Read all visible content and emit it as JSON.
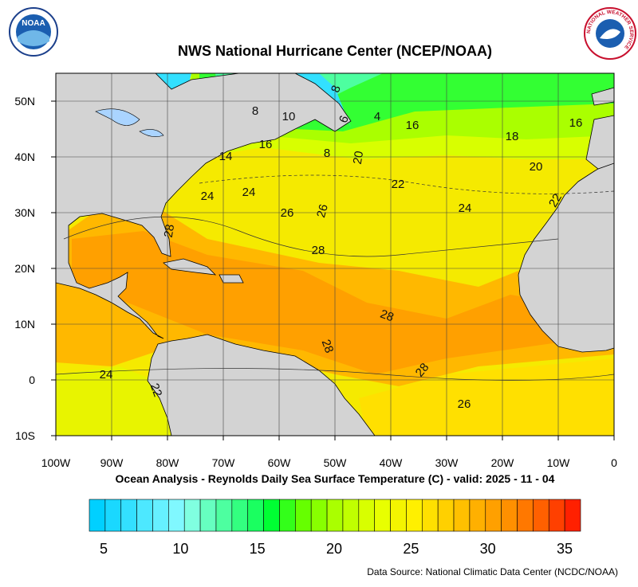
{
  "header": {
    "title": "NWS National Hurricane Center (NCEP/NOAA)",
    "noaa_logo": "NOAA",
    "nws_logo": "NATIONAL WEATHER SERVICE"
  },
  "map": {
    "lon_labels": [
      "100W",
      "90W",
      "80W",
      "70W",
      "60W",
      "50W",
      "40W",
      "30W",
      "20W",
      "10W",
      "0"
    ],
    "lat_labels": [
      "50N",
      "40N",
      "30N",
      "20N",
      "10N",
      "0",
      "10S"
    ],
    "contour_labels": [
      "8",
      "8",
      "10",
      "6",
      "4",
      "16",
      "16",
      "16",
      "18",
      "8",
      "20",
      "14",
      "20",
      "22",
      "24",
      "24",
      "26",
      "26",
      "24",
      "22",
      "28",
      "28",
      "28",
      "28",
      "28",
      "26",
      "24",
      "22"
    ]
  },
  "caption": "Ocean Analysis - Reynolds Daily Sea Surface Temperature (C) - valid: 2025 - 11 - 04",
  "colorbar": {
    "labels": [
      5,
      10,
      15,
      20,
      25,
      30,
      35
    ],
    "colors": [
      "#00d0ff",
      "#1ad8ff",
      "#33e0ff",
      "#4de8ff",
      "#66f0ff",
      "#80f8ff",
      "#80ffe0",
      "#66ffc0",
      "#4dffa0",
      "#33ff80",
      "#1aff60",
      "#00ff33",
      "#33ff1a",
      "#66ff00",
      "#88ff00",
      "#aaff00",
      "#c0ff00",
      "#d8ff00",
      "#e8ff00",
      "#f4f400",
      "#fff000",
      "#ffe000",
      "#ffd000",
      "#ffc000",
      "#ffb000",
      "#ffa000",
      "#ff9000",
      "#ff7800",
      "#ff6000",
      "#ff4000",
      "#ff2000"
    ]
  },
  "source": "Data Source: National Climatic Data Center (NCDC/NOAA)"
}
